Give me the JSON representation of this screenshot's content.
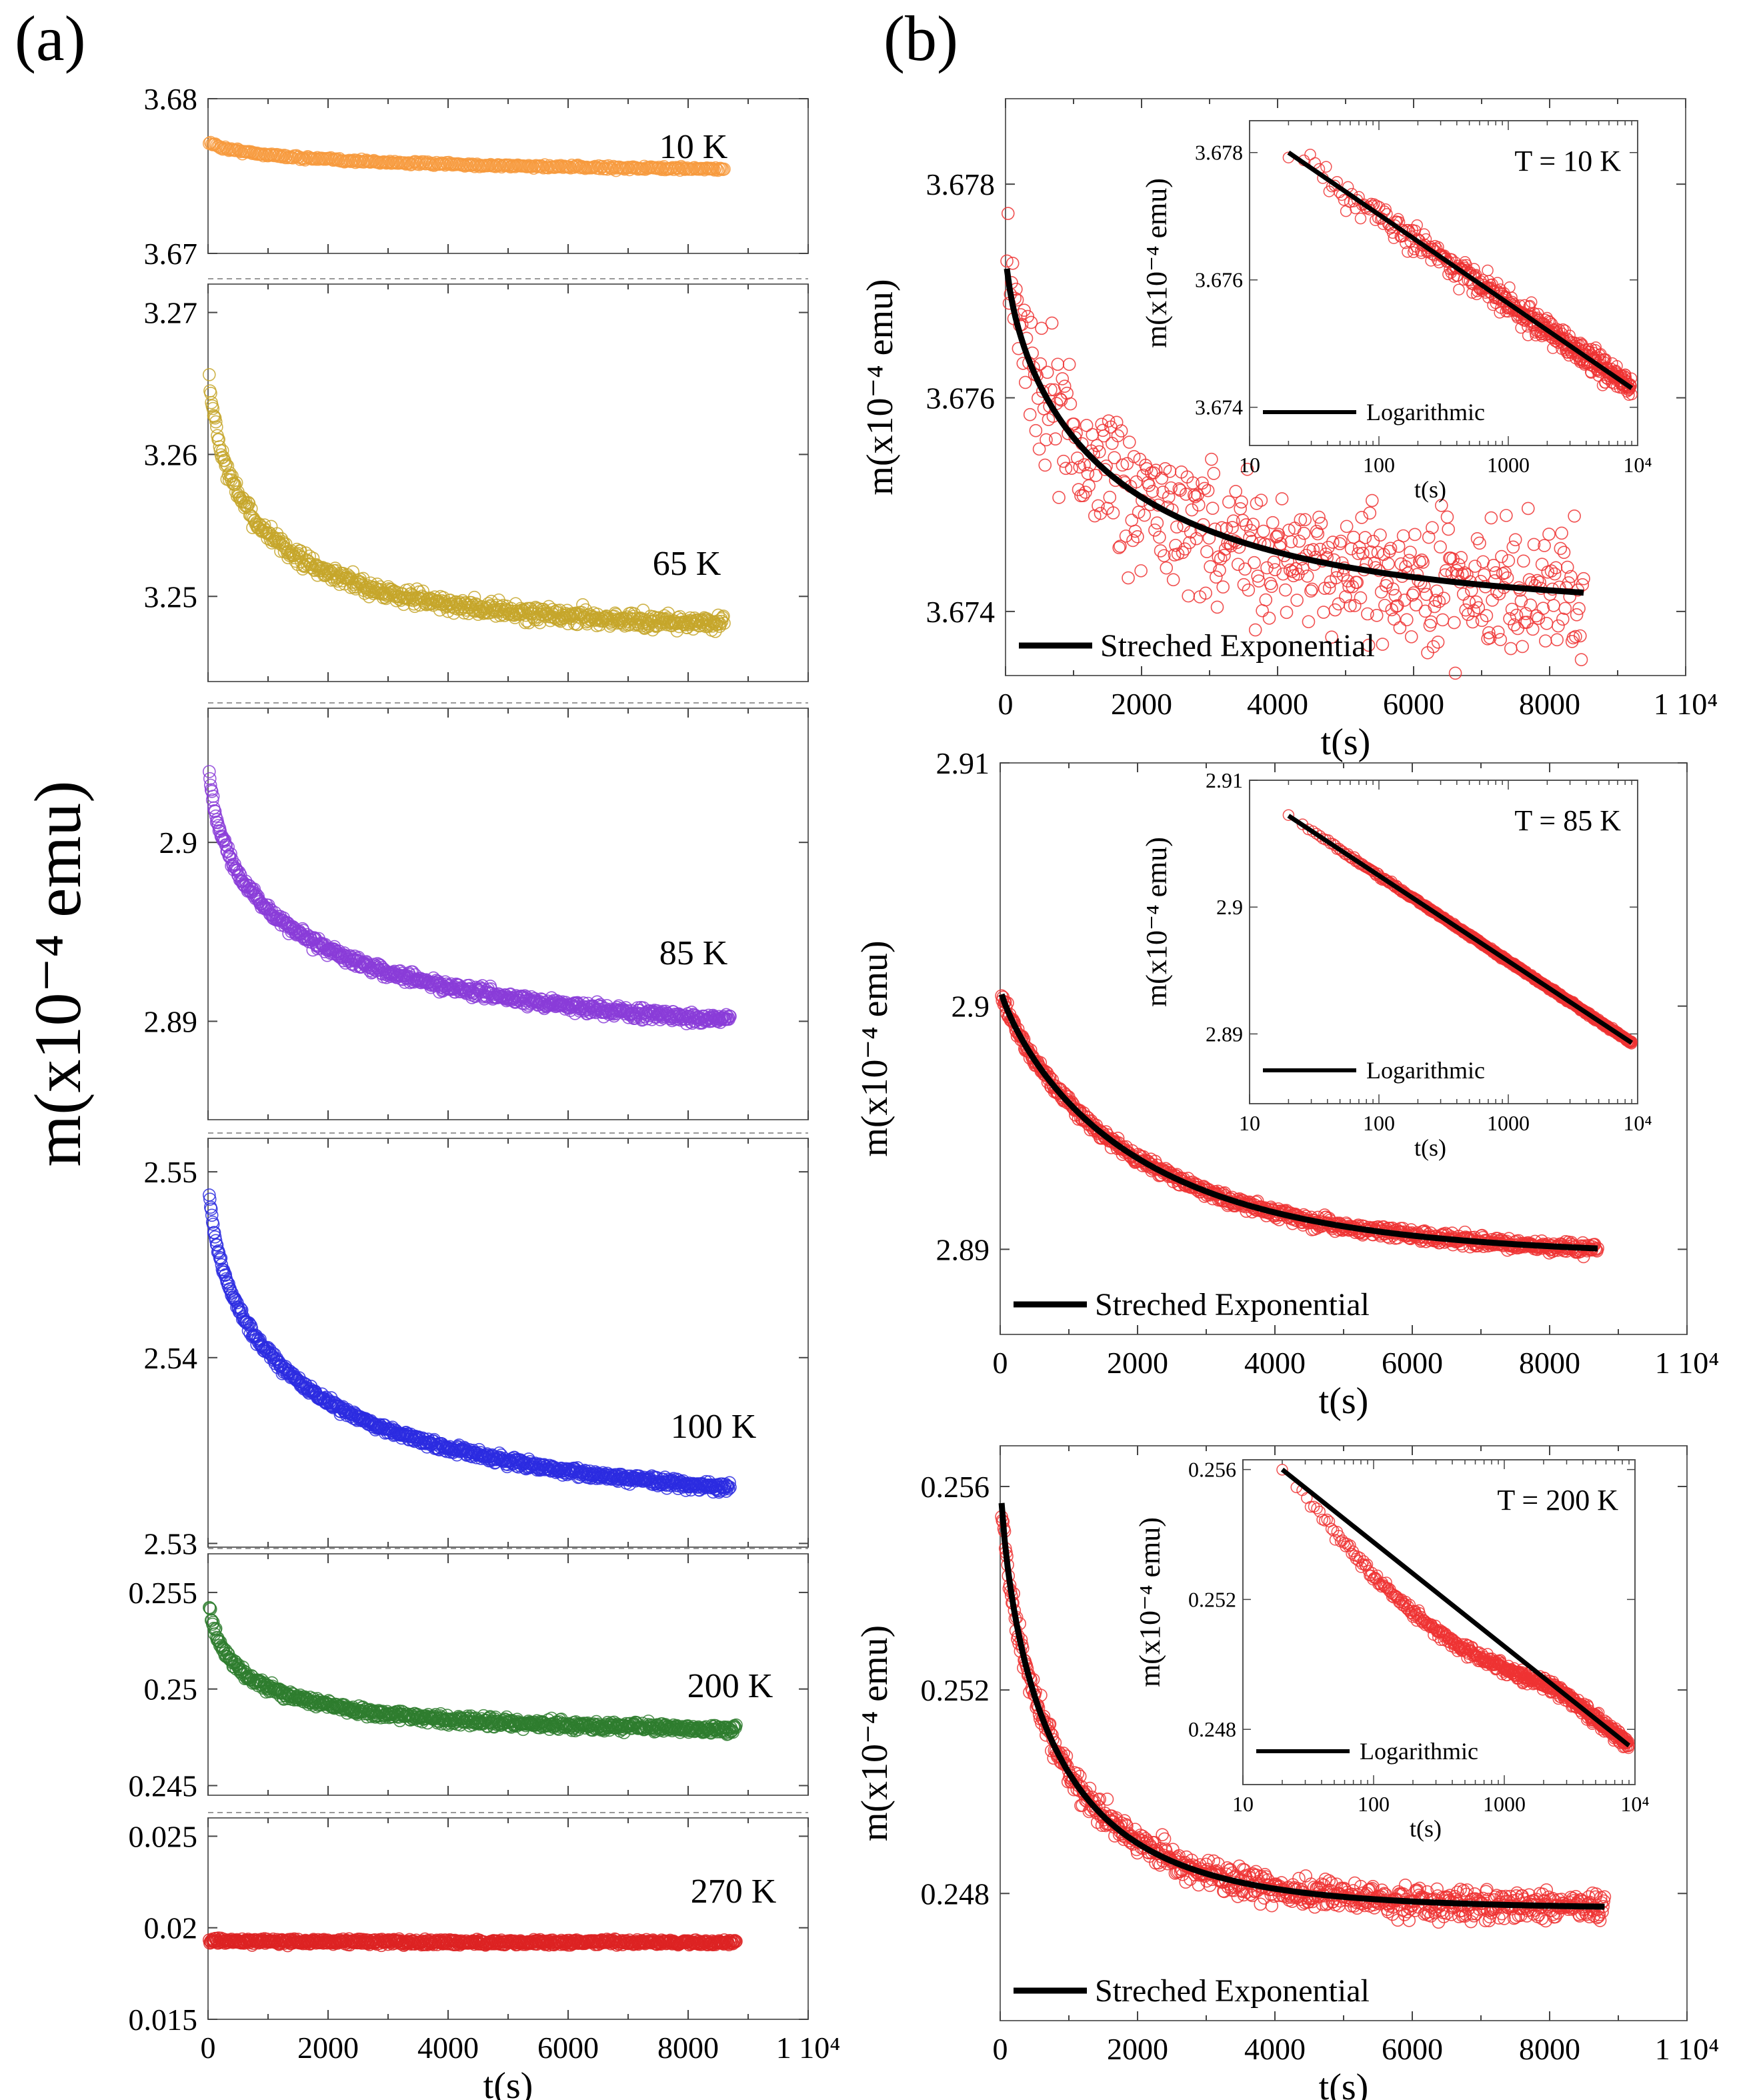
{
  "figure": {
    "panel_labels": {
      "a": "(a)",
      "b": "(b)"
    },
    "shared_ylabel": "m(x10⁻⁴ emu)",
    "shared_xlabel": "t(s)"
  },
  "chart_data": [
    {
      "id": "a1",
      "panel": "(a)",
      "type": "scatter",
      "temperature_label": "10 K",
      "color": "#f79a3d",
      "xlim": [
        0,
        10000
      ],
      "ylim": [
        3.67,
        3.68
      ],
      "y_ticks": [
        "3.67",
        "3.68"
      ],
      "y_tick_values": [
        3.67,
        3.68
      ],
      "points": 420,
      "t_end": 8600,
      "model": {
        "y0": 3.6773,
        "y_inf": 3.6752,
        "tau": 2500,
        "beta": 0.6,
        "noise": 0.00018
      }
    },
    {
      "id": "a2",
      "panel": "(a)",
      "type": "scatter",
      "temperature_label": "65 K",
      "color": "#c6a62a",
      "xlim": [
        0,
        10000
      ],
      "ylim": [
        3.244,
        3.272
      ],
      "y_ticks": [
        "3.25",
        "3.26",
        "3.27"
      ],
      "y_tick_values": [
        3.25,
        3.26,
        3.27
      ],
      "points": 700,
      "t_end": 8600,
      "model": {
        "y0": 3.268,
        "y_inf": 3.2475,
        "tau": 850,
        "beta": 0.55,
        "noise": 0.0009
      }
    },
    {
      "id": "a3",
      "panel": "(a)",
      "type": "scatter",
      "temperature_label": "85 K",
      "color": "#8a3cd8",
      "xlim": [
        0,
        10000
      ],
      "ylim": [
        2.8845,
        2.9075
      ],
      "y_ticks": [
        "2.89",
        "2.9"
      ],
      "y_tick_values": [
        2.89,
        2.9
      ],
      "points": 800,
      "t_end": 8700,
      "model": {
        "y0": 2.906,
        "y_inf": 2.8885,
        "tau": 1500,
        "beta": 0.5,
        "noise": 0.0005
      }
    },
    {
      "id": "a4",
      "panel": "(a)",
      "type": "scatter",
      "temperature_label": "100 K",
      "color": "#2b2be0",
      "xlim": [
        0,
        10000
      ],
      "ylim": [
        2.5298,
        2.5518
      ],
      "y_ticks": [
        "2.53",
        "2.54",
        "2.55"
      ],
      "y_tick_values": [
        2.53,
        2.54,
        2.55
      ],
      "points": 800,
      "t_end": 8700,
      "model": {
        "y0": 2.5505,
        "y_inf": 2.5315,
        "tau": 1600,
        "beta": 0.55,
        "noise": 0.0004
      }
    },
    {
      "id": "a5",
      "panel": "(a)",
      "type": "scatter",
      "temperature_label": "200 K",
      "color": "#2e7d2e",
      "xlim": [
        0,
        10000
      ],
      "ylim": [
        0.2445,
        0.257
      ],
      "y_ticks": [
        "0.245",
        "0.25",
        "0.255"
      ],
      "y_tick_values": [
        0.245,
        0.25,
        0.255
      ],
      "points": 800,
      "t_end": 8800,
      "model": {
        "y0": 0.2556,
        "y_inf": 0.2477,
        "tau": 700,
        "beta": 0.5,
        "noise": 0.0004
      }
    },
    {
      "id": "a6",
      "panel": "(a)",
      "type": "scatter",
      "temperature_label": "270 K",
      "color": "#dd2222",
      "xlim": [
        0,
        10000
      ],
      "ylim": [
        0.015,
        0.026
      ],
      "y_ticks": [
        "0.015",
        "0.02",
        "0.025"
      ],
      "y_tick_values": [
        0.015,
        0.02,
        0.025
      ],
      "x_ticks": [
        "0",
        "2000",
        "4000",
        "6000",
        "8000",
        "1 10⁴"
      ],
      "x_tick_values": [
        0,
        2000,
        4000,
        6000,
        8000,
        10000
      ],
      "xlabel": "t(s)",
      "points": 800,
      "t_end": 8800,
      "model": {
        "y0": 0.0193,
        "y_inf": 0.0192,
        "tau": 2000,
        "beta": 1,
        "noise": 0.00025
      }
    },
    {
      "id": "b1",
      "panel": "(b)",
      "type": "scatter",
      "temperature_label": "T = 10 K",
      "color": "#ee3333",
      "xlim": [
        0,
        10000
      ],
      "ylim": [
        3.6734,
        3.6788
      ],
      "y_ticks": [
        "3.674",
        "3.676",
        "3.678"
      ],
      "y_tick_values": [
        3.674,
        3.676,
        3.678
      ],
      "x_ticks": [
        "0",
        "2000",
        "4000",
        "6000",
        "8000",
        "1 10⁴"
      ],
      "x_tick_values": [
        0,
        2000,
        4000,
        6000,
        8000,
        10000
      ],
      "xlabel": "t(s)",
      "ylabel": "m(x10⁻⁴ emu)",
      "legend": "Streched Exponential",
      "points": 500,
      "t_end": 8500,
      "model": {
        "y0": 3.6774,
        "y_inf": 3.674,
        "tau": 1600,
        "beta": 0.65,
        "noise": 0.00045
      },
      "inset": {
        "type": "scatter",
        "xscale": "log",
        "xlim": [
          10,
          10000
        ],
        "ylim": [
          3.6734,
          3.6785
        ],
        "x_ticks": [
          "10",
          "100",
          "1000",
          "10⁴"
        ],
        "x_tick_values": [
          10,
          100,
          1000,
          10000
        ],
        "y_ticks": [
          "3.674",
          "3.676",
          "3.678"
        ],
        "y_tick_values": [
          3.674,
          3.676,
          3.678
        ],
        "xlabel": "t(s)",
        "ylabel": "m(x10⁻⁴ emu)",
        "legend": "Logarithmic",
        "title": "T = 10 K",
        "fit_line": {
          "t": [
            20,
            9000
          ],
          "y": [
            3.678,
            3.6743
          ]
        },
        "noise": 0.0004,
        "points": 500
      }
    },
    {
      "id": "b2",
      "panel": "(b)",
      "type": "scatter",
      "temperature_label": "T = 85 K",
      "color": "#ee3333",
      "xlim": [
        0,
        10000
      ],
      "ylim": [
        2.8865,
        2.91
      ],
      "y_ticks": [
        "2.89",
        "2.9",
        "2.91"
      ],
      "y_tick_values": [
        2.89,
        2.9,
        2.91
      ],
      "x_ticks": [
        "0",
        "2000",
        "4000",
        "6000",
        "8000",
        "1 10⁴"
      ],
      "x_tick_values": [
        0,
        2000,
        4000,
        6000,
        8000,
        10000
      ],
      "xlabel": "t(s)",
      "ylabel": "m(x10⁻⁴ emu)",
      "legend": "Streched Exponential",
      "points": 800,
      "t_end": 8700,
      "model": {
        "y0": 2.9007,
        "y_inf": 2.8897,
        "tau": 2000,
        "beta": 0.85,
        "noise": 0.0004
      },
      "inset": {
        "type": "scatter",
        "xscale": "log",
        "xlim": [
          10,
          10000
        ],
        "ylim": [
          2.8845,
          2.91
        ],
        "x_ticks": [
          "10",
          "100",
          "1000",
          "10⁴"
        ],
        "x_tick_values": [
          10,
          100,
          1000,
          10000
        ],
        "y_ticks": [
          "2.89",
          "2.9",
          "2.91"
        ],
        "y_tick_values": [
          2.89,
          2.9,
          2.91
        ],
        "xlabel": "t(s)",
        "ylabel": "m(x10⁻⁴ emu)",
        "legend": "Logarithmic",
        "title": "T = 85 K",
        "fit_line": {
          "t": [
            20,
            9000
          ],
          "y": [
            2.9072,
            2.8893
          ]
        },
        "noise": 0.00025,
        "points": 600
      }
    },
    {
      "id": "b3",
      "panel": "(b)",
      "type": "scatter",
      "temperature_label": "T = 200 K",
      "color": "#ee3333",
      "xlim": [
        0,
        10000
      ],
      "ylim": [
        0.2455,
        0.2568
      ],
      "y_ticks": [
        "0.248",
        "0.252",
        "0.256"
      ],
      "y_tick_values": [
        0.248,
        0.252,
        0.256
      ],
      "x_ticks": [
        "0",
        "2000",
        "4000",
        "6000",
        "8000",
        "1 10⁴"
      ],
      "x_tick_values": [
        0,
        2000,
        4000,
        6000,
        8000,
        10000
      ],
      "xlabel": "t(s)",
      "ylabel": "m(x10⁻⁴ emu)",
      "legend": "Streched Exponential",
      "points": 800,
      "t_end": 8800,
      "model": {
        "y0": 0.2563,
        "y_inf": 0.2477,
        "tau": 800,
        "beta": 0.7,
        "noise": 0.00045
      },
      "inset": {
        "type": "scatter",
        "xscale": "log",
        "xlim": [
          10,
          10000
        ],
        "ylim": [
          0.2463,
          0.2563
        ],
        "x_ticks": [
          "10",
          "100",
          "1000",
          "10⁴"
        ],
        "x_tick_values": [
          10,
          100,
          1000,
          10000
        ],
        "y_ticks": [
          "0.248",
          "0.252",
          "0.256"
        ],
        "y_tick_values": [
          0.248,
          0.252,
          0.256
        ],
        "xlabel": "t(s)",
        "ylabel": "m(x10⁻⁴ emu)",
        "legend": "Logarithmic",
        "title": "T = 200 K",
        "fit_line": {
          "t": [
            20,
            9000
          ],
          "y": [
            0.256,
            0.2475
          ]
        },
        "noise": 0.0004,
        "points": 600
      }
    }
  ]
}
